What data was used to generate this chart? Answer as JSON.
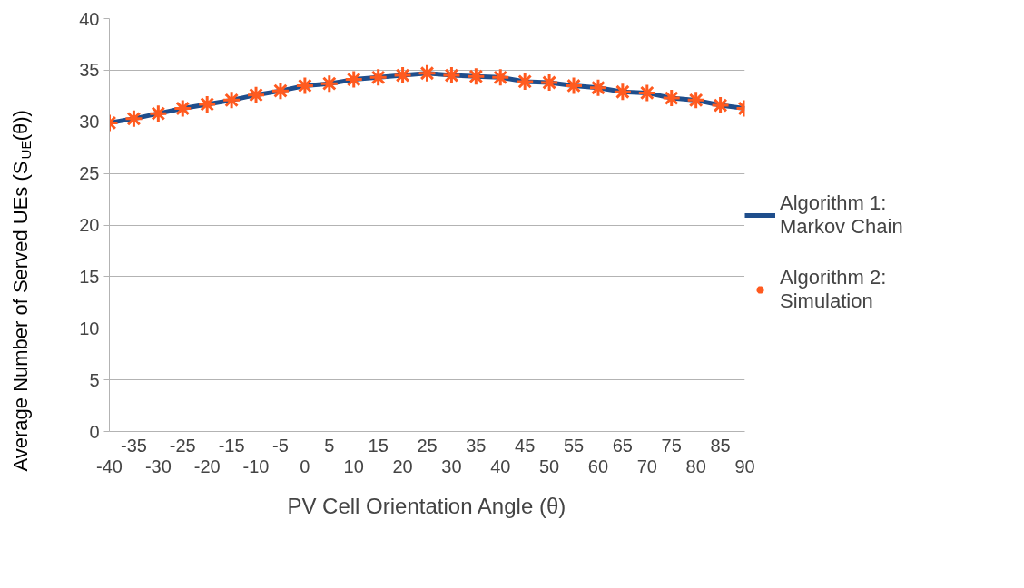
{
  "chart_data": {
    "type": "line",
    "xlabel": "PV Cell Orientation Angle (θ)",
    "ylabel": "Average Number of Served UEs (S$_{UE}$(θ))",
    "categories": [
      "-40",
      "-35",
      "-30",
      "-25",
      "-20",
      "-15",
      "-10",
      "-5",
      "0",
      "5",
      "10",
      "15",
      "20",
      "25",
      "30",
      "35",
      "40",
      "45",
      "50",
      "55",
      "60",
      "65",
      "70",
      "75",
      "80",
      "85",
      "90"
    ],
    "series": [
      {
        "name": "Algorithm 1: Markov Chain",
        "marker": "none",
        "color": "#1f4e8c",
        "values": [
          29.9,
          30.3,
          30.8,
          31.3,
          31.7,
          32.1,
          32.6,
          33.0,
          33.5,
          33.7,
          34.1,
          34.3,
          34.5,
          34.7,
          34.5,
          34.4,
          34.3,
          33.9,
          33.8,
          33.5,
          33.3,
          32.9,
          32.8,
          32.3,
          32.1,
          31.6,
          31.3
        ]
      },
      {
        "name": "Algorithm 2: Simulation",
        "type": "scatter",
        "marker": "cross",
        "color": "#ff5a1f",
        "values": [
          29.9,
          30.3,
          30.8,
          31.3,
          31.7,
          32.1,
          32.6,
          33.0,
          33.5,
          33.7,
          34.1,
          34.3,
          34.5,
          34.7,
          34.5,
          34.4,
          34.3,
          33.9,
          33.8,
          33.5,
          33.3,
          32.9,
          32.8,
          32.3,
          32.1,
          31.6,
          31.3
        ]
      }
    ],
    "ylim": [
      0,
      40
    ],
    "yticks": [
      0,
      5,
      10,
      15,
      20,
      25,
      30,
      35,
      40
    ],
    "grid": "y",
    "legend": "right"
  }
}
